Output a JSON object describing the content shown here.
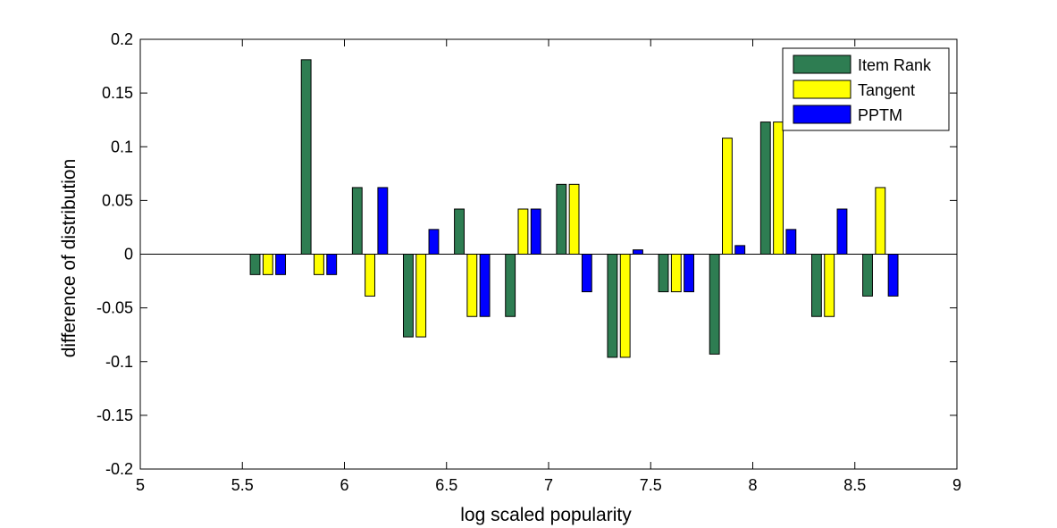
{
  "chart_data": {
    "type": "bar",
    "title": "",
    "xlabel": "log scaled popularity",
    "ylabel": "difference of distribution",
    "xlim": [
      5,
      9
    ],
    "ylim": [
      -0.2,
      0.2
    ],
    "xticks": [
      5,
      5.5,
      6,
      6.5,
      7,
      7.5,
      8,
      8.5,
      9
    ],
    "xtick_labels": [
      "5",
      "5.5",
      "6",
      "6.5",
      "7",
      "7.5",
      "8",
      "8.5",
      "9"
    ],
    "yticks": [
      -0.2,
      -0.15,
      -0.1,
      -0.05,
      0,
      0.05,
      0.1,
      0.15,
      0.2
    ],
    "ytick_labels": [
      "-0.2",
      "-0.15",
      "-0.1",
      "-0.05",
      "0",
      "0.05",
      "0.1",
      "0.15",
      "0.2"
    ],
    "grid": false,
    "legend_position": "top-right",
    "x": [
      5.625,
      5.875,
      6.125,
      6.375,
      6.625,
      6.875,
      7.125,
      7.375,
      7.625,
      7.875,
      8.125,
      8.375,
      8.625
    ],
    "series": [
      {
        "name": "Item Rank",
        "color": "#2e7d52",
        "values": [
          -0.019,
          0.181,
          0.062,
          -0.077,
          0.042,
          -0.058,
          0.065,
          -0.096,
          -0.035,
          -0.093,
          0.123,
          -0.058,
          -0.039
        ]
      },
      {
        "name": "Tangent",
        "color": "#ffff00",
        "values": [
          -0.019,
          -0.019,
          -0.039,
          -0.077,
          -0.058,
          0.042,
          0.065,
          -0.096,
          -0.035,
          0.108,
          0.123,
          -0.058,
          0.062
        ]
      },
      {
        "name": "PPTM",
        "color": "#0000ff",
        "values": [
          -0.019,
          -0.019,
          0.062,
          0.023,
          -0.058,
          0.042,
          -0.035,
          0.004,
          -0.035,
          0.008,
          0.023,
          0.042,
          -0.039
        ]
      }
    ]
  }
}
